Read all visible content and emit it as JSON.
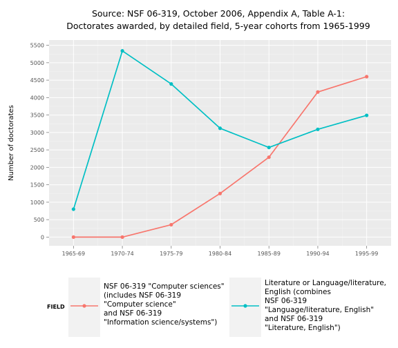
{
  "chart_data": {
    "type": "line",
    "title_lines": [
      "Source: NSF 06-319, October 2006, Appendix A, Table A-1:",
      "Doctorates awarded, by detailed field, 5-year cohorts from 1965-1999"
    ],
    "xlabel": "",
    "ylabel": "Number of doctorates",
    "categories": [
      "1965-69",
      "1970-74",
      "1975-79",
      "1980-84",
      "1985-89",
      "1990-94",
      "1995-99"
    ],
    "ylim": [
      -250,
      5650
    ],
    "yticks": [
      0,
      500,
      1000,
      1500,
      2000,
      2500,
      3000,
      3500,
      4000,
      4500,
      5000,
      5500
    ],
    "grid": true,
    "legend": {
      "position": "bottom",
      "title": "FIELD",
      "entries": [
        {
          "color": "#F8766D",
          "lines": [
            "NSF 06-319 \"Computer sciences\"",
            "(includes NSF 06-319",
            "\"Computer science\"",
            "and NSF 06-319",
            "\"Information science/systems\")"
          ]
        },
        {
          "color": "#00BFC4",
          "lines": [
            "Literature or Language/literature,",
            "English (combines",
            "NSF 06-319",
            "\"Language/literature, English\"",
            "and NSF 06-319",
            "\"Literature, English\")"
          ]
        }
      ]
    },
    "series": [
      {
        "color": "#F8766D",
        "values": [
          0,
          0,
          355,
          1250,
          2290,
          4160,
          4600
        ]
      },
      {
        "color": "#00BFC4",
        "values": [
          800,
          5340,
          4390,
          3120,
          2570,
          3090,
          3490
        ]
      }
    ]
  }
}
